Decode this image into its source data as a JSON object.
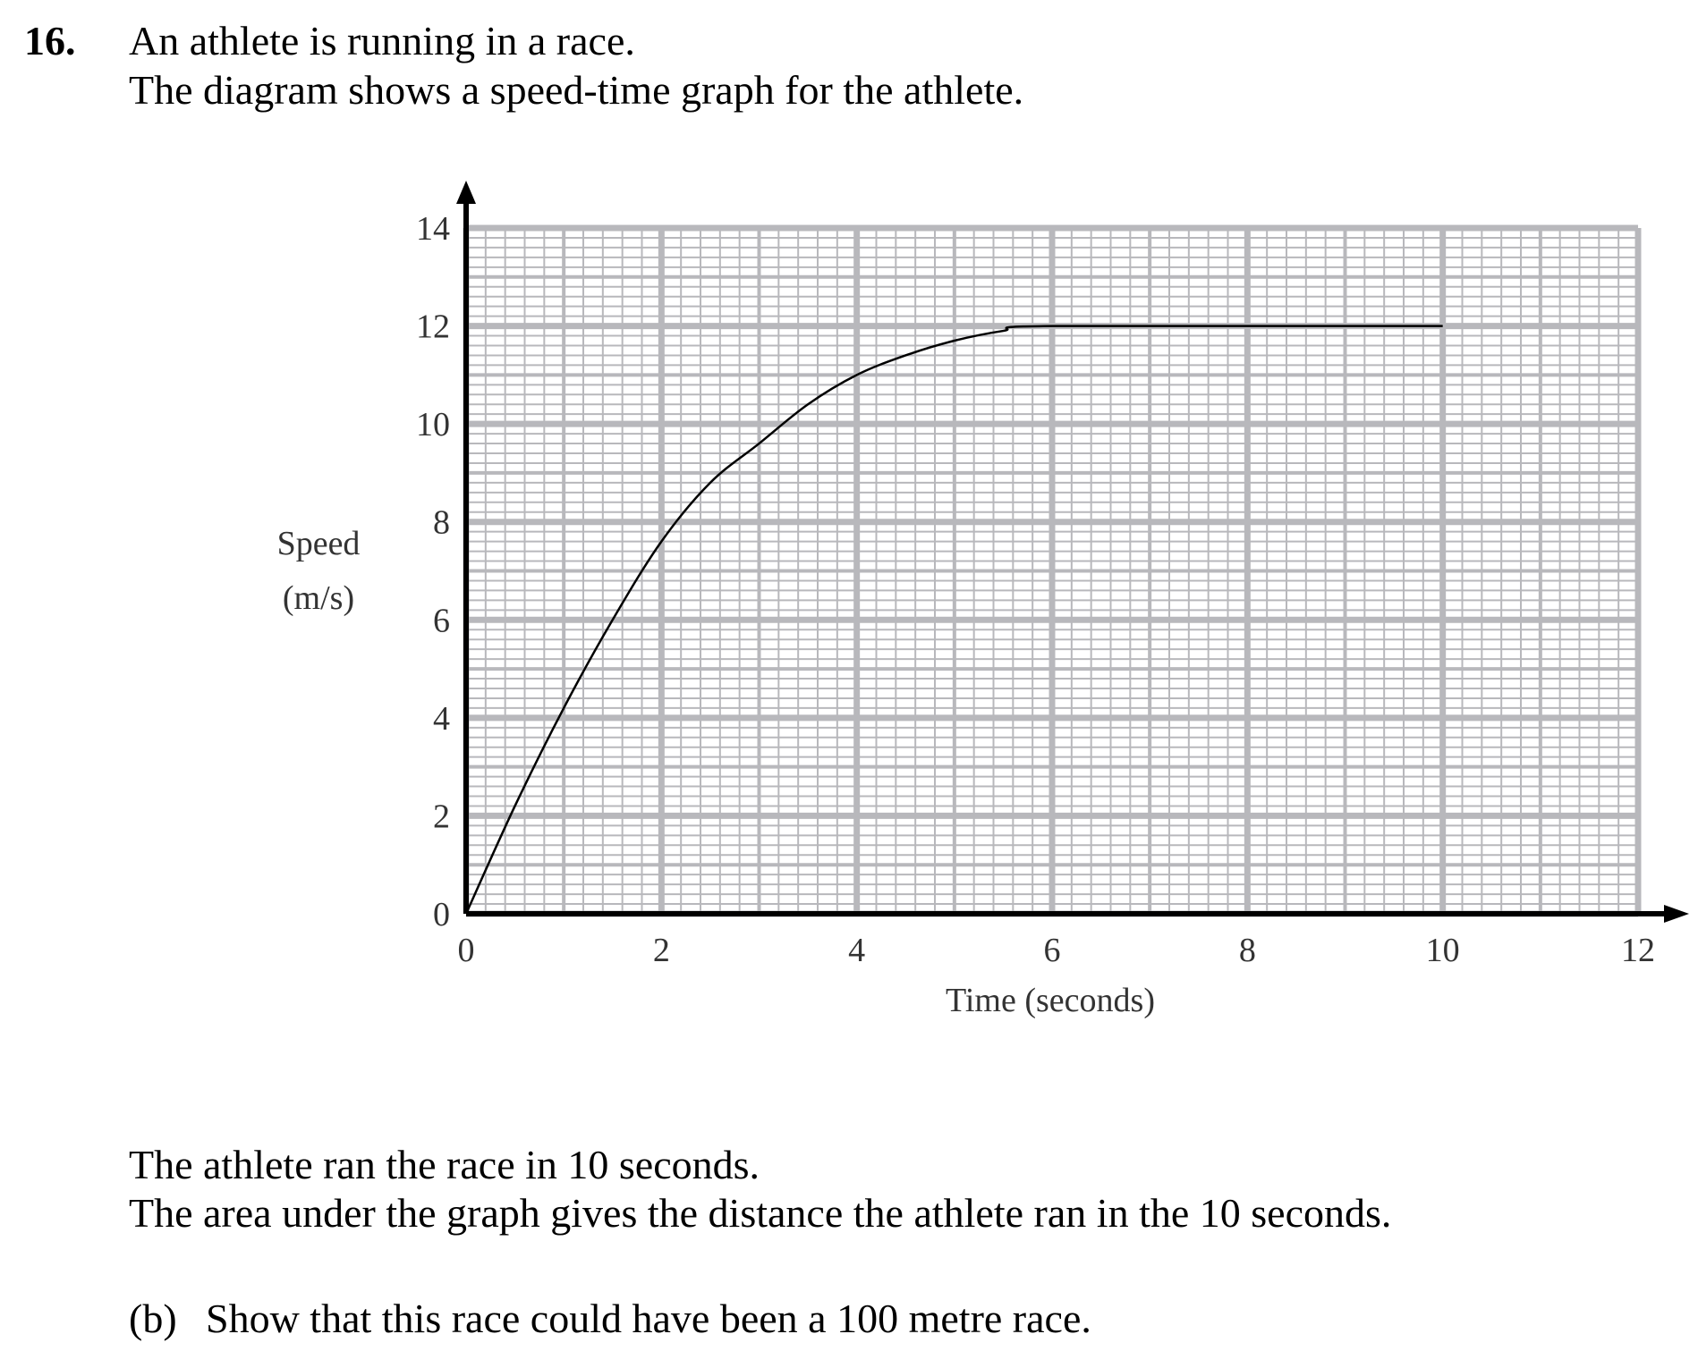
{
  "question": {
    "number": "16.",
    "intro": [
      "An athlete is running in a race.",
      "The diagram shows a speed-time graph for the athlete."
    ],
    "after": [
      "The athlete ran the race in 10 seconds.",
      "The area under the graph gives the distance the athlete ran in the 10 seconds."
    ],
    "part_label": "(b)",
    "part_text": "Show that this race could have been a 100 metre race."
  },
  "chart_data": {
    "type": "line",
    "y_label": [
      "Speed",
      "(m/s)"
    ],
    "x_label": "Time (seconds)",
    "x": [
      0,
      0.5,
      1,
      1.5,
      2,
      2.5,
      3,
      3.5,
      4,
      4.5,
      5,
      5.5,
      6,
      10
    ],
    "values": [
      0,
      2.2,
      4.2,
      6.0,
      7.6,
      8.8,
      9.6,
      10.4,
      11.0,
      11.4,
      11.7,
      11.9,
      12,
      12
    ],
    "color": "#000000",
    "xlim": [
      0,
      12
    ],
    "ylim": [
      0,
      14
    ],
    "xticks": [
      0,
      2,
      4,
      6,
      8,
      10,
      12
    ],
    "yticks": [
      0,
      2,
      4,
      6,
      8,
      10,
      12,
      14
    ],
    "grid": true
  }
}
